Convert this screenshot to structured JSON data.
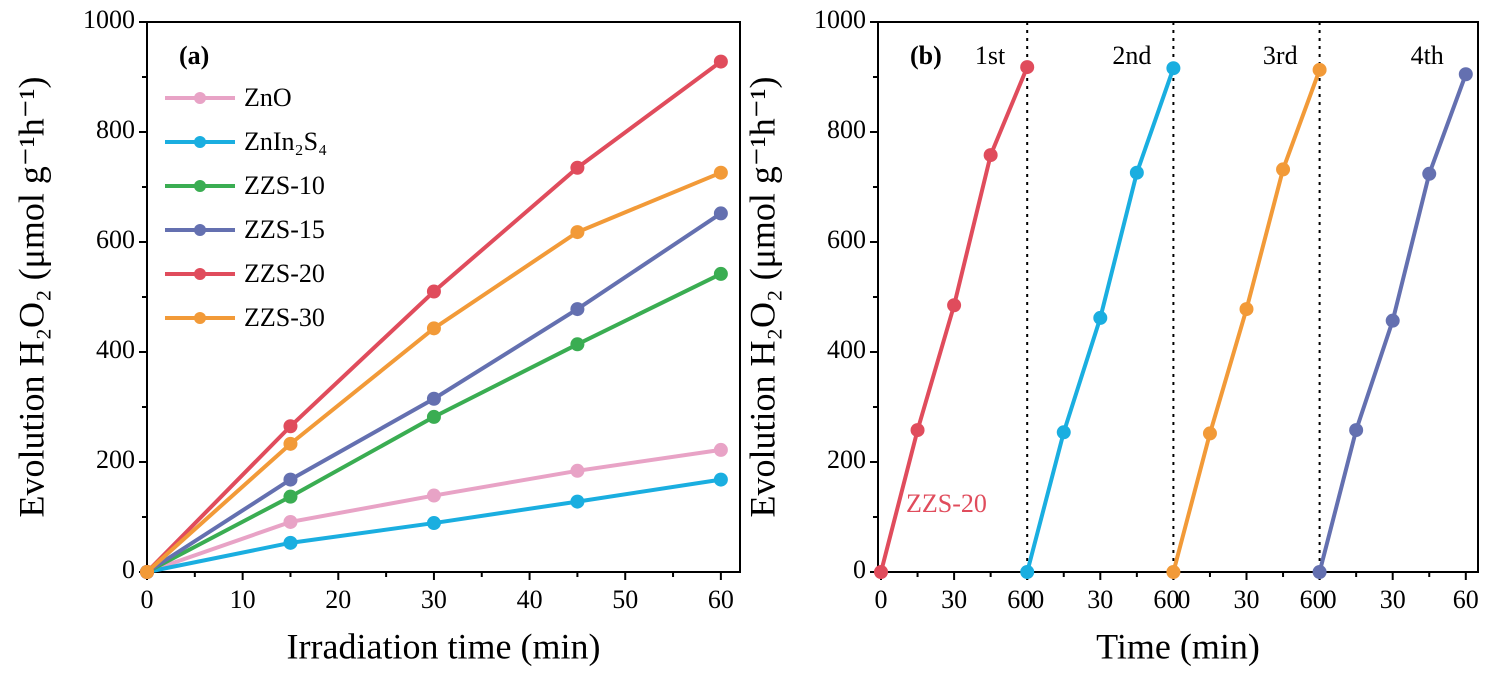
{
  "chart_data": [
    {
      "type": "line",
      "label": "(a)",
      "x_label": "Irradiation time (min)",
      "y_label": "Evolution H₂O₂ (μmol g⁻¹h⁻¹)",
      "x": [
        0,
        15,
        30,
        45,
        60
      ],
      "series": [
        {
          "name": "ZnO",
          "color": "#e8a3c6",
          "values": [
            0,
            91,
            139,
            184,
            222
          ]
        },
        {
          "name": "ZnIn₂S₄",
          "color": "#1aaee0",
          "values": [
            0,
            53,
            89,
            128,
            168
          ]
        },
        {
          "name": "ZZS-10",
          "color": "#3aad52",
          "values": [
            0,
            137,
            282,
            414,
            542
          ]
        },
        {
          "name": "ZZS-15",
          "color": "#6470b0",
          "values": [
            0,
            168,
            315,
            478,
            652
          ]
        },
        {
          "name": "ZZS-20",
          "color": "#e04c5c",
          "values": [
            0,
            265,
            510,
            735,
            928
          ]
        },
        {
          "name": "ZZS-30",
          "color": "#f29a38",
          "values": [
            0,
            233,
            443,
            618,
            726
          ]
        }
      ],
      "xlim": [
        0,
        62
      ],
      "xticks": [
        0,
        10,
        20,
        30,
        40,
        50,
        60
      ],
      "ylim": [
        0,
        1000
      ],
      "yticks": [
        0,
        200,
        400,
        600,
        800,
        1000
      ]
    },
    {
      "type": "cycles",
      "label": "(b)",
      "x_label": "Time (min)",
      "y_label": "Evolution H₂O₂ (μmol g⁻¹h⁻¹)",
      "annotation": "ZZS-20",
      "x": [
        0,
        15,
        30,
        45,
        60
      ],
      "series": [
        {
          "name": "1st",
          "color": "#e04c5c",
          "values": [
            0,
            258,
            485,
            758,
            918
          ]
        },
        {
          "name": "2nd",
          "color": "#1aaee0",
          "values": [
            0,
            254,
            462,
            726,
            916
          ]
        },
        {
          "name": "3rd",
          "color": "#f29a38",
          "values": [
            0,
            252,
            478,
            732,
            913
          ]
        },
        {
          "name": "4th",
          "color": "#6470b0",
          "values": [
            0,
            258,
            457,
            724,
            905
          ]
        }
      ],
      "xlim": [
        0,
        60
      ],
      "xticks": [
        0,
        30,
        60
      ],
      "ylim": [
        0,
        1000
      ],
      "yticks": [
        0,
        200,
        400,
        600,
        800,
        1000
      ]
    }
  ]
}
